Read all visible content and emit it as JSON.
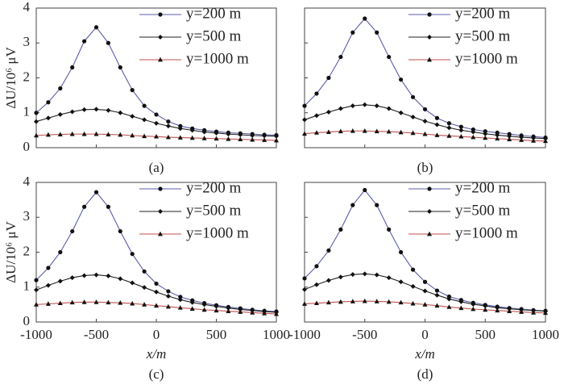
{
  "chart_data": [
    {
      "type": "line",
      "panel_label": "(a)",
      "ylabel": "ΔU/10⁶ μV",
      "x": [
        -1000,
        -900,
        -800,
        -700,
        -600,
        -500,
        -400,
        -300,
        -200,
        -100,
        0,
        100,
        200,
        300,
        400,
        500,
        600,
        700,
        800,
        900,
        1000
      ],
      "xlim": [
        -1000,
        1000
      ],
      "xticks": [
        -1000,
        -500,
        0,
        500,
        1000
      ],
      "ylim": [
        0,
        4
      ],
      "yticks": [
        0,
        1,
        2,
        3,
        4
      ],
      "legend": "upper right",
      "series": [
        {
          "name": "y=200 m",
          "color": "#5a5ca8",
          "marker": "circle",
          "values": [
            1.0,
            1.3,
            1.7,
            2.3,
            3.05,
            3.45,
            3.0,
            2.3,
            1.65,
            1.2,
            0.95,
            0.75,
            0.62,
            0.55,
            0.5,
            0.46,
            0.43,
            0.41,
            0.39,
            0.37,
            0.36
          ]
        },
        {
          "name": "y=500 m",
          "color": "#222222",
          "marker": "diamond",
          "values": [
            0.75,
            0.85,
            0.95,
            1.03,
            1.09,
            1.1,
            1.07,
            1.0,
            0.9,
            0.8,
            0.7,
            0.62,
            0.55,
            0.5,
            0.45,
            0.42,
            0.39,
            0.37,
            0.35,
            0.34,
            0.33
          ]
        },
        {
          "name": "y=1000 m",
          "color": "#c0504d",
          "marker": "triangle",
          "values": [
            0.35,
            0.37,
            0.38,
            0.39,
            0.39,
            0.39,
            0.38,
            0.37,
            0.35,
            0.33,
            0.32,
            0.3,
            0.29,
            0.28,
            0.27,
            0.26,
            0.25,
            0.24,
            0.23,
            0.22,
            0.21
          ]
        }
      ]
    },
    {
      "type": "line",
      "panel_label": "(b)",
      "x": [
        -1000,
        -900,
        -800,
        -700,
        -600,
        -500,
        -400,
        -300,
        -200,
        -100,
        0,
        100,
        200,
        300,
        400,
        500,
        600,
        700,
        800,
        900,
        1000
      ],
      "xlim": [
        -1000,
        1000
      ],
      "xticks": [
        -1000,
        -500,
        0,
        500,
        1000
      ],
      "ylim": [
        0,
        4
      ],
      "yticks": [
        0,
        1,
        2,
        3,
        4
      ],
      "legend": "upper right",
      "series": [
        {
          "name": "y=200 m",
          "color": "#5a5ca8",
          "marker": "circle",
          "values": [
            1.2,
            1.55,
            2.0,
            2.6,
            3.3,
            3.7,
            3.3,
            2.6,
            1.95,
            1.45,
            1.1,
            0.85,
            0.7,
            0.6,
            0.52,
            0.47,
            0.43,
            0.39,
            0.35,
            0.32,
            0.29
          ]
        },
        {
          "name": "y=500 m",
          "color": "#222222",
          "marker": "diamond",
          "values": [
            0.8,
            0.92,
            1.02,
            1.12,
            1.2,
            1.23,
            1.2,
            1.12,
            1.0,
            0.88,
            0.76,
            0.66,
            0.57,
            0.5,
            0.45,
            0.4,
            0.36,
            0.33,
            0.3,
            0.28,
            0.26
          ]
        },
        {
          "name": "y=1000 m",
          "color": "#c0504d",
          "marker": "triangle",
          "values": [
            0.4,
            0.43,
            0.45,
            0.47,
            0.48,
            0.48,
            0.47,
            0.46,
            0.44,
            0.42,
            0.39,
            0.36,
            0.34,
            0.32,
            0.3,
            0.28,
            0.26,
            0.24,
            0.22,
            0.2,
            0.19
          ]
        }
      ]
    },
    {
      "type": "line",
      "panel_label": "(c)",
      "ylabel": "ΔU/10⁶ μV",
      "xlabel": "x/m",
      "x": [
        -1000,
        -900,
        -800,
        -700,
        -600,
        -500,
        -400,
        -300,
        -200,
        -100,
        0,
        100,
        200,
        300,
        400,
        500,
        600,
        700,
        800,
        900,
        1000
      ],
      "xlim": [
        -1000,
        1000
      ],
      "xticks": [
        -1000,
        -500,
        0,
        500,
        1000
      ],
      "ylim": [
        0,
        4
      ],
      "yticks": [
        0,
        1,
        2,
        3,
        4
      ],
      "legend": "upper right",
      "series": [
        {
          "name": "y=200 m",
          "color": "#5a5ca8",
          "marker": "circle",
          "values": [
            1.2,
            1.55,
            2.0,
            2.6,
            3.3,
            3.72,
            3.3,
            2.6,
            1.95,
            1.45,
            1.1,
            0.88,
            0.72,
            0.62,
            0.54,
            0.48,
            0.43,
            0.39,
            0.35,
            0.32,
            0.3
          ]
        },
        {
          "name": "y=500 m",
          "color": "#222222",
          "marker": "diamond",
          "values": [
            0.92,
            1.05,
            1.17,
            1.27,
            1.33,
            1.35,
            1.32,
            1.24,
            1.12,
            0.99,
            0.86,
            0.74,
            0.64,
            0.56,
            0.5,
            0.45,
            0.4,
            0.36,
            0.33,
            0.3,
            0.28
          ]
        },
        {
          "name": "y=1000 m",
          "color": "#c0504d",
          "marker": "triangle",
          "values": [
            0.5,
            0.52,
            0.54,
            0.56,
            0.57,
            0.57,
            0.56,
            0.55,
            0.53,
            0.5,
            0.47,
            0.44,
            0.41,
            0.38,
            0.35,
            0.33,
            0.31,
            0.29,
            0.27,
            0.25,
            0.23
          ]
        }
      ]
    },
    {
      "type": "line",
      "panel_label": "(d)",
      "xlabel": "x/m",
      "x": [
        -1000,
        -900,
        -800,
        -700,
        -600,
        -500,
        -400,
        -300,
        -200,
        -100,
        0,
        100,
        200,
        300,
        400,
        500,
        600,
        700,
        800,
        900,
        1000
      ],
      "xlim": [
        -1000,
        1000
      ],
      "xticks": [
        -1000,
        -500,
        0,
        500,
        1000
      ],
      "ylim": [
        0,
        4
      ],
      "yticks": [
        0,
        1,
        2,
        3,
        4
      ],
      "legend": "upper right",
      "series": [
        {
          "name": "y=200 m",
          "color": "#5a5ca8",
          "marker": "circle",
          "values": [
            1.25,
            1.6,
            2.05,
            2.65,
            3.35,
            3.78,
            3.35,
            2.65,
            2.0,
            1.5,
            1.15,
            0.9,
            0.73,
            0.63,
            0.55,
            0.49,
            0.44,
            0.4,
            0.37,
            0.34,
            0.32
          ]
        },
        {
          "name": "y=500 m",
          "color": "#222222",
          "marker": "diamond",
          "values": [
            0.93,
            1.07,
            1.19,
            1.29,
            1.36,
            1.38,
            1.35,
            1.27,
            1.15,
            1.02,
            0.89,
            0.77,
            0.66,
            0.58,
            0.51,
            0.46,
            0.41,
            0.38,
            0.35,
            0.33,
            0.31
          ]
        },
        {
          "name": "y=1000 m",
          "color": "#c0504d",
          "marker": "triangle",
          "values": [
            0.52,
            0.54,
            0.56,
            0.58,
            0.59,
            0.6,
            0.59,
            0.58,
            0.56,
            0.53,
            0.5,
            0.47,
            0.43,
            0.4,
            0.37,
            0.35,
            0.33,
            0.31,
            0.29,
            0.27,
            0.26
          ]
        }
      ]
    }
  ]
}
